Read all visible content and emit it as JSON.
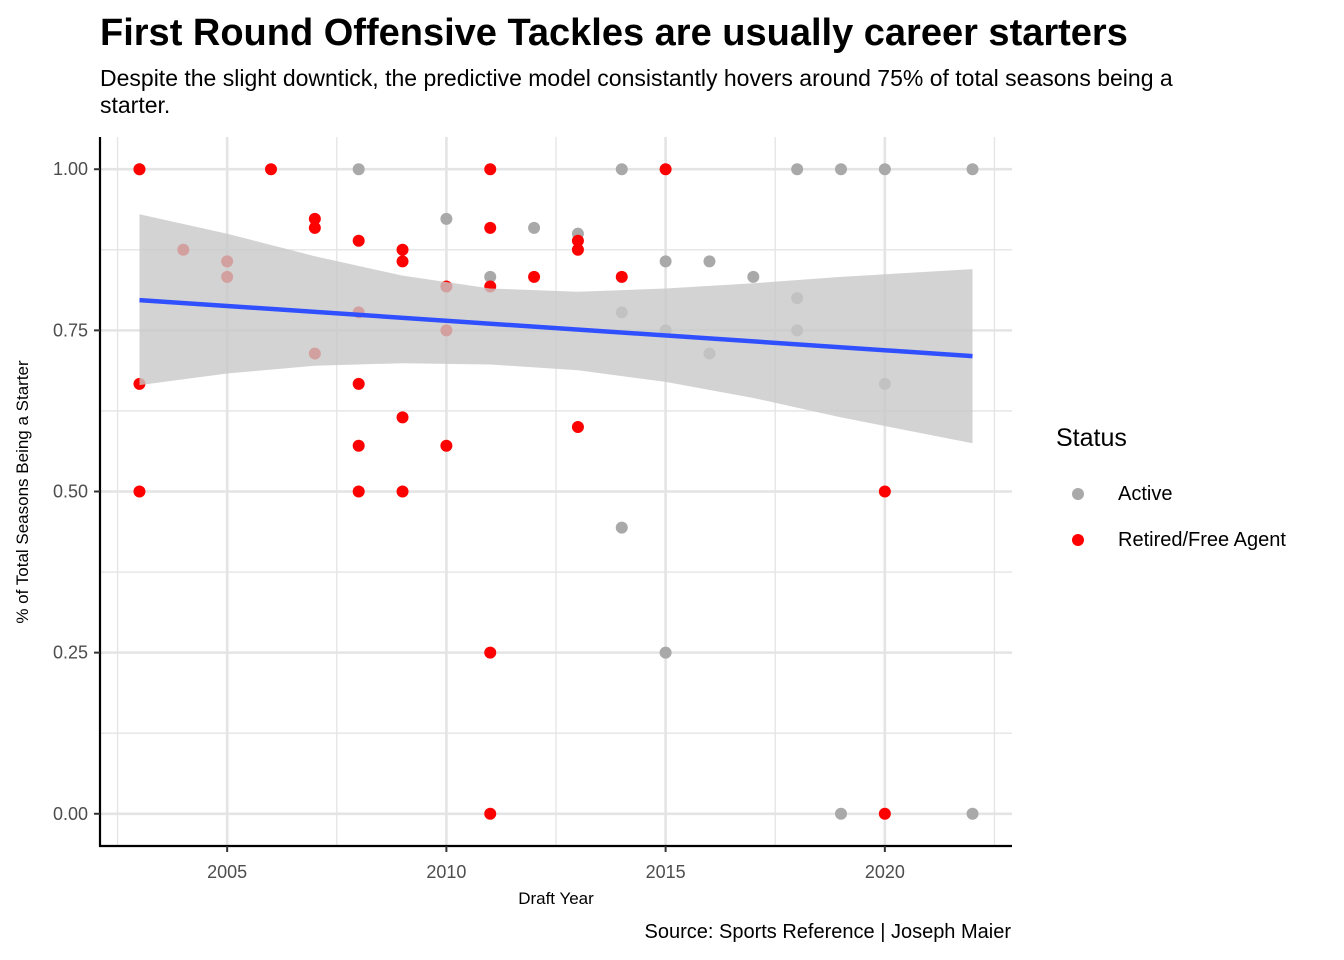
{
  "title": "First Round Offensive Tackles are usually career starters",
  "subtitle": "Despite the slight downtick, the predictive model consistantly hovers around 75% of total seasons being a starter.",
  "caption": "Source: Sports Reference | Joseph Maier",
  "colors": {
    "active": "#a9a9a9",
    "retired": "#ff0000",
    "trend_line": "#3050ff",
    "ribbon": "#c8c8c8",
    "grid": "#e4e4e4"
  },
  "chart_data": {
    "type": "scatter",
    "xlabel": "Draft Year",
    "ylabel": "% of Total Seasons Being a Starter",
    "xlim": [
      2002.1,
      2022.9
    ],
    "ylim": [
      -0.05,
      1.05
    ],
    "x_ticks": [
      2005,
      2010,
      2015,
      2020
    ],
    "y_ticks": [
      0.0,
      0.25,
      0.5,
      0.75,
      1.0
    ],
    "y_tick_labels": [
      "0.00",
      "0.25",
      "0.50",
      "0.75",
      "1.00"
    ],
    "grid": true,
    "legend": {
      "title": "Status",
      "position": "right",
      "entries": [
        {
          "label": "Active",
          "color": "#a9a9a9"
        },
        {
          "label": "Retired/Free Agent",
          "color": "#ff0000"
        }
      ]
    },
    "series": [
      {
        "name": "Active",
        "color": "#a9a9a9",
        "points": [
          {
            "x": 2003,
            "y": 1.0
          },
          {
            "x": 2008,
            "y": 1.0
          },
          {
            "x": 2010,
            "y": 0.923
          },
          {
            "x": 2011,
            "y": 0.833
          },
          {
            "x": 2012,
            "y": 0.909
          },
          {
            "x": 2013,
            "y": 0.9
          },
          {
            "x": 2014,
            "y": 1.0
          },
          {
            "x": 2014,
            "y": 0.778
          },
          {
            "x": 2014,
            "y": 0.444
          },
          {
            "x": 2015,
            "y": 0.857
          },
          {
            "x": 2015,
            "y": 0.75
          },
          {
            "x": 2015,
            "y": 0.25
          },
          {
            "x": 2016,
            "y": 0.857
          },
          {
            "x": 2016,
            "y": 0.714
          },
          {
            "x": 2017,
            "y": 0.833
          },
          {
            "x": 2018,
            "y": 1.0
          },
          {
            "x": 2018,
            "y": 0.8
          },
          {
            "x": 2018,
            "y": 0.75
          },
          {
            "x": 2019,
            "y": 1.0
          },
          {
            "x": 2019,
            "y": 0.0
          },
          {
            "x": 2020,
            "y": 1.0
          },
          {
            "x": 2020,
            "y": 0.667
          },
          {
            "x": 2022,
            "y": 1.0
          },
          {
            "x": 2022,
            "y": 0.0
          }
        ]
      },
      {
        "name": "Retired/Free Agent",
        "color": "#ff0000",
        "points": [
          {
            "x": 2003,
            "y": 1.0
          },
          {
            "x": 2003,
            "y": 0.667
          },
          {
            "x": 2003,
            "y": 0.5
          },
          {
            "x": 2004,
            "y": 0.875
          },
          {
            "x": 2005,
            "y": 0.857
          },
          {
            "x": 2005,
            "y": 0.833
          },
          {
            "x": 2006,
            "y": 1.0
          },
          {
            "x": 2007,
            "y": 0.923
          },
          {
            "x": 2007,
            "y": 0.909
          },
          {
            "x": 2007,
            "y": 0.714
          },
          {
            "x": 2008,
            "y": 0.889
          },
          {
            "x": 2008,
            "y": 0.778
          },
          {
            "x": 2008,
            "y": 0.667
          },
          {
            "x": 2008,
            "y": 0.571
          },
          {
            "x": 2008,
            "y": 0.5
          },
          {
            "x": 2009,
            "y": 0.875
          },
          {
            "x": 2009,
            "y": 0.857
          },
          {
            "x": 2009,
            "y": 0.615
          },
          {
            "x": 2009,
            "y": 0.5
          },
          {
            "x": 2010,
            "y": 0.818
          },
          {
            "x": 2010,
            "y": 0.75
          },
          {
            "x": 2010,
            "y": 0.571
          },
          {
            "x": 2011,
            "y": 1.0
          },
          {
            "x": 2011,
            "y": 0.909
          },
          {
            "x": 2011,
            "y": 0.818
          },
          {
            "x": 2011,
            "y": 0.25
          },
          {
            "x": 2011,
            "y": 0.0
          },
          {
            "x": 2012,
            "y": 0.833
          },
          {
            "x": 2013,
            "y": 0.889
          },
          {
            "x": 2013,
            "y": 0.875
          },
          {
            "x": 2013,
            "y": 0.6
          },
          {
            "x": 2014,
            "y": 0.833
          },
          {
            "x": 2015,
            "y": 1.0
          },
          {
            "x": 2020,
            "y": 0.5
          },
          {
            "x": 2020,
            "y": 0.0
          }
        ]
      }
    ],
    "trend": {
      "method": "linear",
      "x": [
        2003,
        2022
      ],
      "y": [
        0.797,
        0.71
      ],
      "ci_band": [
        {
          "x": 2003,
          "lower": 0.665,
          "upper": 0.93
        },
        {
          "x": 2005,
          "lower": 0.683,
          "upper": 0.9
        },
        {
          "x": 2007,
          "lower": 0.695,
          "upper": 0.865
        },
        {
          "x": 2009,
          "lower": 0.699,
          "upper": 0.835
        },
        {
          "x": 2011,
          "lower": 0.697,
          "upper": 0.815
        },
        {
          "x": 2013,
          "lower": 0.688,
          "upper": 0.81
        },
        {
          "x": 2015,
          "lower": 0.67,
          "upper": 0.815
        },
        {
          "x": 2017,
          "lower": 0.645,
          "upper": 0.823
        },
        {
          "x": 2019,
          "lower": 0.615,
          "upper": 0.833
        },
        {
          "x": 2022,
          "lower": 0.575,
          "upper": 0.845
        }
      ]
    }
  }
}
